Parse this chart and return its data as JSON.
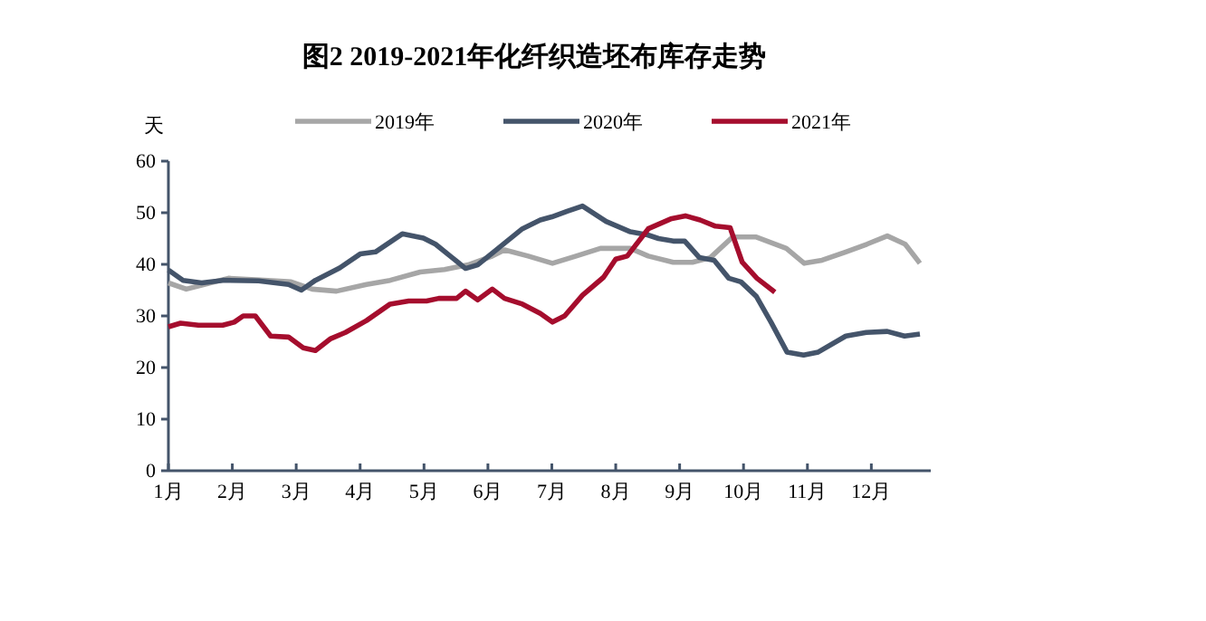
{
  "chart_data": {
    "type": "line",
    "title": "图2 2019-2021年化纤织造坯布库存走势",
    "ylabel": "天",
    "xlim": [
      1,
      12.93
    ],
    "ylim": [
      0,
      60
    ],
    "yticks": [
      0,
      10,
      20,
      30,
      40,
      50,
      60
    ],
    "xticks": [
      {
        "value": 1,
        "label": "1月"
      },
      {
        "value": 2,
        "label": "2月"
      },
      {
        "value": 3,
        "label": "3月"
      },
      {
        "value": 4,
        "label": "4月"
      },
      {
        "value": 5,
        "label": "5月"
      },
      {
        "value": 6,
        "label": "6月"
      },
      {
        "value": 7,
        "label": "7月"
      },
      {
        "value": 8,
        "label": "8月"
      },
      {
        "value": 9,
        "label": "9月"
      },
      {
        "value": 10,
        "label": "10月"
      },
      {
        "value": 11,
        "label": "11月"
      },
      {
        "value": 12,
        "label": "12月"
      }
    ],
    "grid": false,
    "legend": "top",
    "marker": "none",
    "line_style": "solid",
    "series": [
      {
        "name": "2019年",
        "color": "#a6a6a6",
        "x": [
          1,
          1.28,
          1.56,
          1.94,
          2.5,
          2.92,
          3.25,
          3.63,
          4.1,
          4.47,
          4.94,
          5.32,
          5.69,
          6.07,
          6.26,
          6.63,
          7.01,
          7.38,
          7.76,
          8.23,
          8.51,
          8.9,
          9.2,
          9.48,
          9.83,
          10.2,
          10.67,
          10.95,
          11.23,
          11.6,
          11.93,
          12.25,
          12.53,
          12.76
        ],
        "values": [
          36.4,
          35.2,
          36.1,
          37.3,
          36.9,
          36.6,
          35.2,
          34.8,
          36.1,
          36.9,
          38.5,
          39,
          39.9,
          41.6,
          42.8,
          41.6,
          40.2,
          41.6,
          43.1,
          43.1,
          41.6,
          40.4,
          40.4,
          41.3,
          45.3,
          45.3,
          43.1,
          40.2,
          40.8,
          42.4,
          43.9,
          45.5,
          43.9,
          40.2
        ]
      },
      {
        "name": "2020年",
        "color": "#44546a",
        "x": [
          1,
          1.23,
          1.52,
          1.85,
          2.41,
          2.88,
          3.08,
          3.3,
          3.68,
          4,
          4.24,
          4.66,
          4.99,
          5.18,
          5.41,
          5.65,
          5.84,
          6.16,
          6.54,
          6.82,
          7,
          7.24,
          7.48,
          7.85,
          8.23,
          8.5,
          8.67,
          8.9,
          9.08,
          9.31,
          9.54,
          9.77,
          9.96,
          10.2,
          10.43,
          10.68,
          10.94,
          11.17,
          11.6,
          11.92,
          12.25,
          12.52,
          12.76
        ],
        "values": [
          38.9,
          36.9,
          36.4,
          36.9,
          36.8,
          36.1,
          35,
          36.9,
          39.3,
          42,
          42.4,
          45.9,
          45.1,
          43.9,
          41.6,
          39.2,
          39.9,
          43.1,
          46.9,
          48.6,
          49.2,
          50.3,
          51.3,
          48.3,
          46.3,
          45.7,
          45,
          44.5,
          44.5,
          41.3,
          40.8,
          37.3,
          36.6,
          33.8,
          28.8,
          23,
          22.4,
          23,
          26.1,
          26.8,
          27,
          26.1,
          26.5
        ]
      },
      {
        "name": "2021年",
        "color": "#a50d2d",
        "x": [
          1,
          1.19,
          1.47,
          1.85,
          2.03,
          2.17,
          2.36,
          2.6,
          2.88,
          3.11,
          3.3,
          3.54,
          3.77,
          4.1,
          4.47,
          4.76,
          5.04,
          5.23,
          5.51,
          5.65,
          5.84,
          6.07,
          6.26,
          6.54,
          6.82,
          7.01,
          7.2,
          7.48,
          7.81,
          8,
          8.18,
          8.51,
          8.86,
          9.09,
          9.32,
          9.56,
          9.79,
          9.98,
          10.21,
          10.49
        ],
        "values": [
          27.9,
          28.6,
          28.2,
          28.2,
          28.8,
          30,
          30,
          26.1,
          25.9,
          23.8,
          23.3,
          25.6,
          26.8,
          29.1,
          32.3,
          32.9,
          32.9,
          33.4,
          33.4,
          34.8,
          33.1,
          35.2,
          33.4,
          32.3,
          30.5,
          28.8,
          30,
          34,
          37.5,
          41,
          41.6,
          46.9,
          48.8,
          49.4,
          48.6,
          47.4,
          47.1,
          40.4,
          37.3,
          34.6
        ]
      }
    ]
  }
}
